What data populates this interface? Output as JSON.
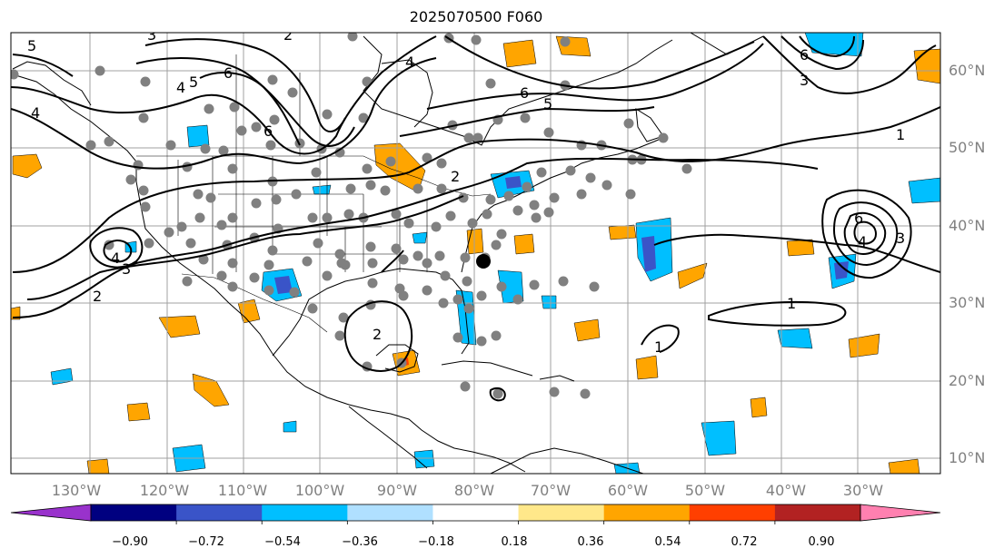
{
  "title": "2025070500 F060",
  "map": {
    "lon_labels": [
      "130°W",
      "120°W",
      "110°W",
      "100°W",
      "90°W",
      "80°W",
      "70°W",
      "60°W",
      "50°W",
      "40°W",
      "30°W"
    ],
    "lat_labels": [
      "60°N",
      "50°N",
      "40°N",
      "30°N",
      "20°N",
      "10°N"
    ],
    "contour_labels": [
      {
        "text": "1",
        "name": "contour-label-1"
      },
      {
        "text": "2",
        "name": "contour-label-2"
      },
      {
        "text": "3",
        "name": "contour-label-3"
      },
      {
        "text": "4",
        "name": "contour-label-4"
      },
      {
        "text": "5",
        "name": "contour-label-5"
      },
      {
        "text": "6",
        "name": "contour-label-6"
      }
    ],
    "colors": {
      "positive": "#ffa500",
      "negative": "#00bfff",
      "strong_negative": "#3355cc",
      "station": "#808080",
      "contour": "#000000"
    }
  },
  "colorbar": {
    "ticks": [
      "−0.90",
      "−0.72",
      "−0.54",
      "−0.36",
      "−0.18",
      "0.18",
      "0.36",
      "0.54",
      "0.72",
      "0.90"
    ],
    "colors": [
      "#9932cc",
      "#000080",
      "#3a54c8",
      "#00bfff",
      "#b0e0ff",
      "#ffffff",
      "#ffe88a",
      "#ffa500",
      "#ff3f00",
      "#b22222",
      "#ff80b0"
    ]
  }
}
